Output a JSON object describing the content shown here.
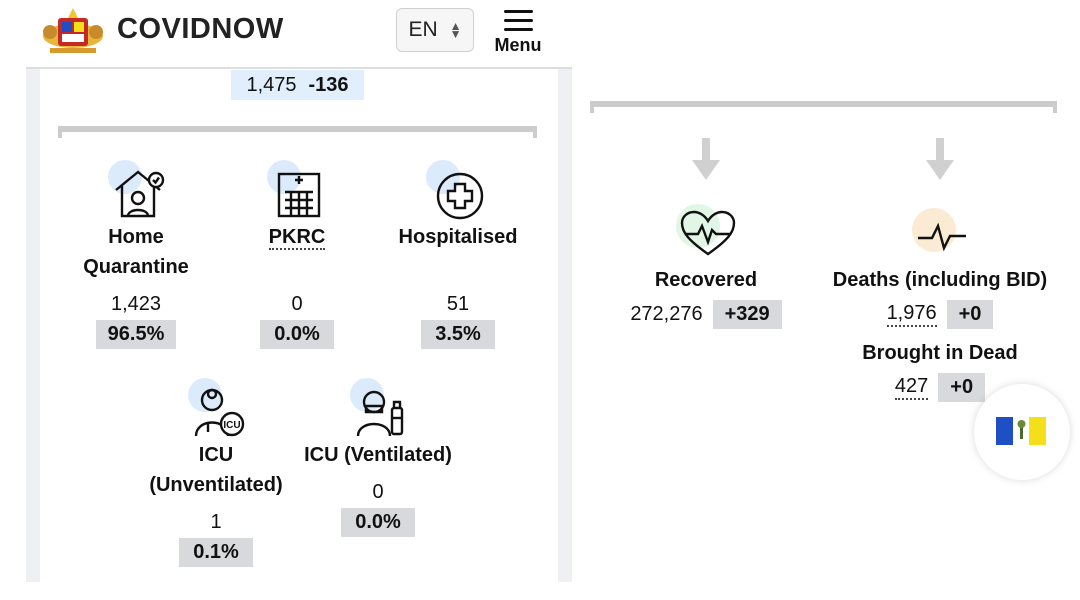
{
  "header": {
    "brand": "COVIDNOW",
    "language": "EN",
    "menu_label": "Menu"
  },
  "top_summary": {
    "value": "1,475",
    "delta": "-136"
  },
  "left_stats": [
    {
      "id": "home-quarantine",
      "label": "Home Quarantine",
      "value": "1,423",
      "percent": "96.5%",
      "icon": "home-quarantine-icon"
    },
    {
      "id": "pkrc",
      "label": "PKRC",
      "value": "0",
      "percent": "0.0%",
      "icon": "hospital-building-icon"
    },
    {
      "id": "hospitalised",
      "label": "Hospitalised",
      "value": "51",
      "percent": "3.5%",
      "icon": "medical-cross-icon"
    },
    {
      "id": "icu-unventilated",
      "label": "ICU (Unventilated)",
      "value": "1",
      "percent": "0.1%",
      "icon": "icu-doctor-icon"
    },
    {
      "id": "icu-ventilated",
      "label": "ICU (Ventilated)",
      "value": "0",
      "percent": "0.0%",
      "icon": "ventilated-patient-icon"
    }
  ],
  "right_stats": {
    "recovered": {
      "label": "Recovered",
      "value": "272,276",
      "delta": "+329",
      "icon": "heartbeat-icon",
      "halo_color": "#e2f6e6"
    },
    "deaths": {
      "label": "Deaths (including BID)",
      "value": "1,976",
      "delta": "+0",
      "icon": "pulse-line-icon",
      "halo_color": "#fcebd4"
    },
    "bid": {
      "label": "Brought in Dead",
      "value": "427",
      "delta": "+0"
    }
  },
  "colors": {
    "chip_blue": "#e1eefc",
    "chip_grey": "#d7d9dd",
    "icon_halo": "#dcebfb",
    "flag_blue": "#1f4fc4",
    "flag_white": "#ffffff",
    "flag_yellow": "#f4e01a"
  }
}
